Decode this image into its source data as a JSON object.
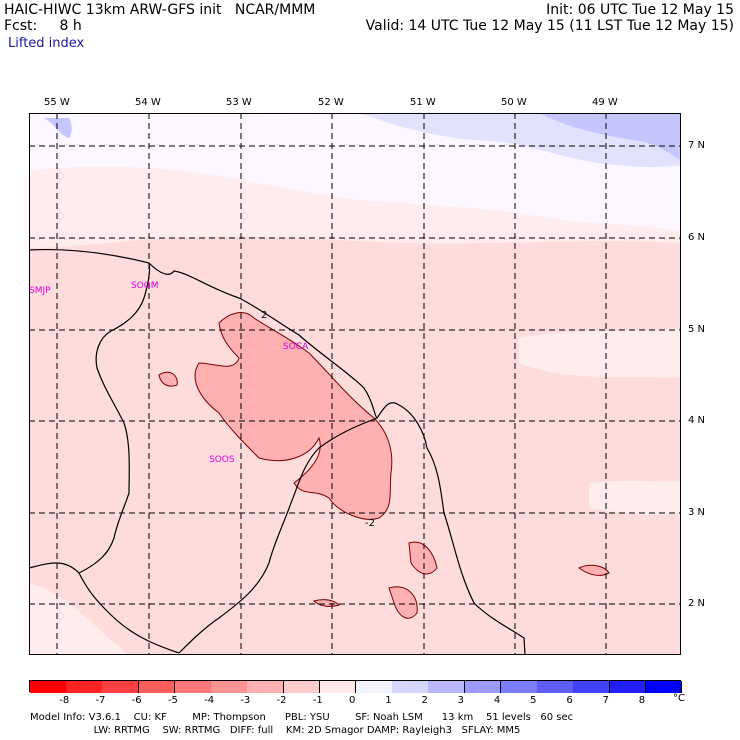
{
  "header": {
    "title": "HAIC-HIWC 13km ARW-GFS init   NCAR/MMM",
    "fcst": "Fcst:     8 h",
    "init": "Init: 06 UTC Tue 12 May 15",
    "valid": "Valid: 14 UTC Tue 12 May 15 (11 LST Tue 12 May 15)",
    "field": "Lifted index"
  },
  "axes": {
    "lon_labels": [
      "55 W",
      "54 W",
      "53 W",
      "52 W",
      "51 W",
      "50 W",
      "49 W"
    ],
    "lat_labels": [
      "7 N",
      "6 N",
      "5 N",
      "4 N",
      "3 N",
      "2 N"
    ]
  },
  "stations": [
    "SMJP",
    "SOGM",
    "SOCA",
    "SOOS"
  ],
  "contour_labels": [
    "2",
    "-2"
  ],
  "colorbar": {
    "labels": [
      "-8",
      "-7",
      "-6",
      "-5",
      "-4",
      "-3",
      "-2",
      "-1",
      "0",
      "1",
      "2",
      "3",
      "4",
      "5",
      "6",
      "7",
      "8"
    ],
    "unit": "°C",
    "colors": [
      "#ff0000",
      "#ff2323",
      "#ff4040",
      "#ff5c5c",
      "#ff7777",
      "#ff9393",
      "#ffb0b0",
      "#ffcccc",
      "#ffe9e9",
      "#f4f4ff",
      "#d6d6ff",
      "#b8b8ff",
      "#9a9aff",
      "#7c7cff",
      "#5e5eff",
      "#4040ff",
      "#2020ff",
      "#0000ff"
    ]
  },
  "model_info": {
    "line1": "Model Info: V3.6.1    CU: KF        MP: Thompson      PBL: YSU        SF: Noah LSM      13 km    51 levels   60 sec",
    "line2": "                    LW: RRTMG    SW: RRTMG   DIFF: full    KM: 2D Smagor DAMP: Rayleigh3   SFLAY: MM5"
  }
}
